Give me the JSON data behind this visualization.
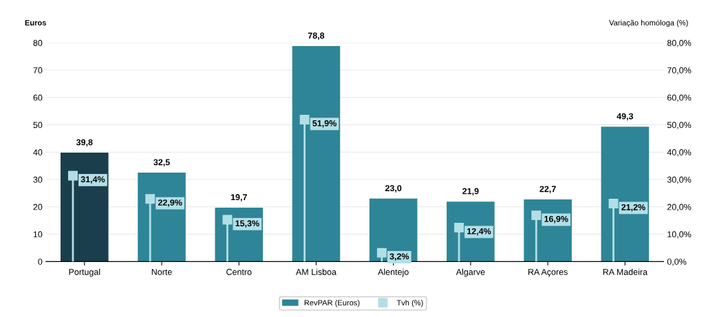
{
  "chart_data": {
    "type": "bar",
    "ylabel": "Euros",
    "y2label": "Variação homóloga (%)",
    "categories": [
      "Portugal",
      "Norte",
      "Centro",
      "AM Lisboa",
      "Alentejo",
      "Algarve",
      "RA Açores",
      "RA Madeira"
    ],
    "series": [
      {
        "name": "RevPAR (Euros)",
        "color": "#2e8597",
        "colors": [
          "#1b3e4c",
          "#2e8597",
          "#2e8597",
          "#2e8597",
          "#2e8597",
          "#2e8597",
          "#2e8597",
          "#2e8597"
        ],
        "values": [
          39.8,
          32.5,
          19.7,
          78.8,
          23.0,
          21.9,
          22.7,
          49.3
        ],
        "value_labels": [
          "39,8",
          "32,5",
          "19,7",
          "78,8",
          "23,0",
          "21,9",
          "22,7",
          "49,3"
        ]
      },
      {
        "name": "Tvh (%)",
        "type": "lollipop",
        "axis": "y2",
        "color": "#b2dfe6",
        "marker": "square",
        "values": [
          31.4,
          22.9,
          15.3,
          51.9,
          3.2,
          12.4,
          16.9,
          21.2
        ],
        "value_labels": [
          "31,4%",
          "22,9%",
          "15,3%",
          "51,9%",
          "3,2%",
          "12,4%",
          "16,9%",
          "21,2%"
        ]
      }
    ],
    "ylim": [
      0,
      80
    ],
    "yticks": [
      0,
      10,
      20,
      30,
      40,
      50,
      60,
      70,
      80
    ],
    "y2lim": [
      0,
      80
    ],
    "y2ticks": [
      {
        "value": 0,
        "label": "0,0%"
      },
      {
        "value": 10,
        "label": "10,0%"
      },
      {
        "value": 20,
        "label": "20,0%"
      },
      {
        "value": 30,
        "label": "30,0%"
      },
      {
        "value": 40,
        "label": "40,0%"
      },
      {
        "value": 50,
        "label": "50,0%"
      },
      {
        "value": 60,
        "label": "60,0%"
      },
      {
        "value": 70,
        "label": "70,0%"
      },
      {
        "value": 80,
        "label": "80,0%"
      }
    ],
    "grid": "y",
    "legend": "bottom"
  }
}
